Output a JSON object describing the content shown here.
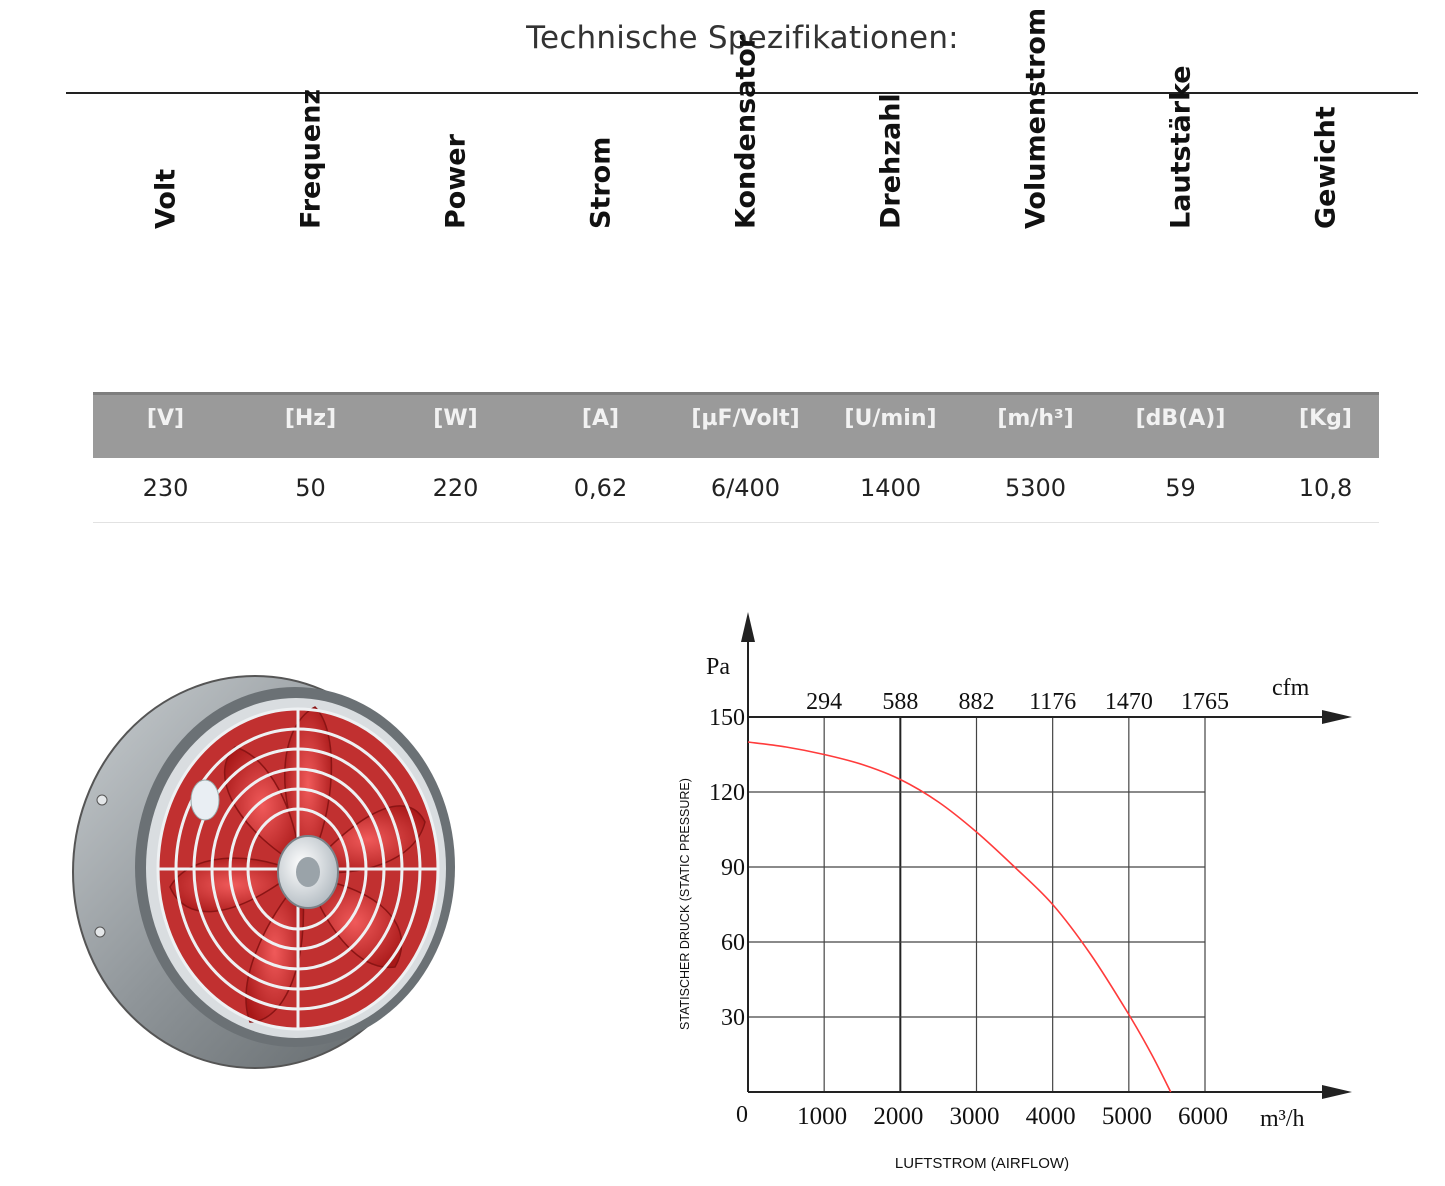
{
  "title": "Technische Spezifikationen:",
  "table": {
    "columns": [
      {
        "header": "Volt",
        "unit": "[V]",
        "value": "230"
      },
      {
        "header": "Frequenz",
        "unit": "[Hz]",
        "value": "50"
      },
      {
        "header": "Power",
        "unit": "[W]",
        "value": "220"
      },
      {
        "header": "Strom",
        "unit": "[A]",
        "value": "0,62"
      },
      {
        "header": "Kondensator",
        "unit": "[µF/Volt]",
        "value": "6/400"
      },
      {
        "header": "Drehzahl",
        "unit": "[U/min]",
        "value": "1400"
      },
      {
        "header": "Volumenstrom",
        "unit": "[m/h³]",
        "value": "5300"
      },
      {
        "header": "Lautstärke",
        "unit": "[dB(A)]",
        "value": "59"
      },
      {
        "header": "Gewicht",
        "unit": "[Kg]",
        "value": "10,8"
      }
    ]
  },
  "colors": {
    "unit_band": "#9a9a9a",
    "curve": "#ff3b3b",
    "fan_blade": "#d42a2a",
    "fan_housing": "#8f9599"
  },
  "chart_data": {
    "type": "line",
    "ylabel_unit": "Pa",
    "ylabel": "STATISCHER DRUCK (STATIC PRESSURE)",
    "xlabel": "LUFTSTROM (AIRFLOW)",
    "x_unit": "m³/h",
    "x_secondary_unit": "cfm",
    "origin_label": "0",
    "xticks": [
      1000,
      2000,
      3000,
      4000,
      5000,
      6000
    ],
    "x_secondary_ticks": [
      "294",
      "588",
      "882",
      "1176",
      "1470",
      "1765"
    ],
    "yticks": [
      30,
      60,
      90,
      120,
      150
    ],
    "xlim": [
      0,
      6000
    ],
    "ylim": [
      0,
      150
    ],
    "grid": true,
    "series": [
      {
        "x": [
          0,
          500,
          1000,
          1500,
          2000,
          2500,
          3000,
          3500,
          4000,
          4500,
          5000,
          5300,
          5550
        ],
        "y": [
          140,
          138,
          135,
          131,
          125,
          116,
          104,
          90,
          75,
          55,
          31,
          15,
          0
        ]
      }
    ]
  }
}
